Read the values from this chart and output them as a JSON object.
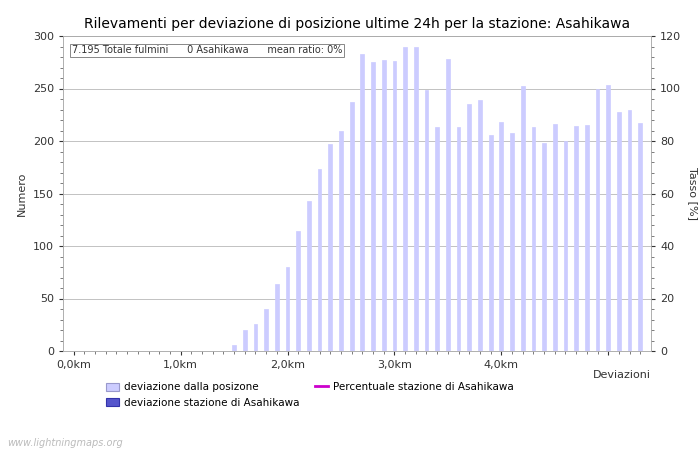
{
  "title": "Rilevamenti per deviazione di posizione ultime 24h per la stazione: Asahikawa",
  "subtitle": "7.195 Totale fulmini      0 Asahikawa      mean ratio: 0%",
  "xlabel": "Deviazioni",
  "ylabel_left": "Numero",
  "ylabel_right": "Tasso [%]",
  "watermark": "www.lightningmaps.org",
  "bar_values": [
    0,
    0,
    0,
    0,
    0,
    0,
    0,
    0,
    0,
    0,
    0,
    0,
    0,
    0,
    0,
    6,
    20,
    26,
    40,
    64,
    80,
    114,
    143,
    173,
    197,
    210,
    237,
    283,
    275,
    277,
    276,
    290,
    290,
    249,
    213,
    278,
    213,
    235,
    239,
    206,
    218,
    208,
    252,
    213,
    198,
    216,
    200,
    214,
    215,
    250,
    253,
    228,
    230,
    217
  ],
  "bar_color_light": "#ccccff",
  "bar_color_dark": "#5555cc",
  "line_color": "#cc00cc",
  "ylim_left": [
    0,
    300
  ],
  "ylim_right": [
    0,
    120
  ],
  "xtick_positions": [
    0,
    10,
    20,
    30,
    40,
    50
  ],
  "xtick_labels": [
    "0,0km",
    "1,0km",
    "2,0km",
    "3,0km",
    "4,0km",
    ""
  ],
  "yticks_left": [
    0,
    50,
    100,
    150,
    200,
    250,
    300
  ],
  "yticks_right": [
    0,
    20,
    40,
    60,
    80,
    100,
    120
  ],
  "grid_color": "#aaaaaa",
  "bg_color": "#ffffff",
  "title_fontsize": 10,
  "label_fontsize": 8,
  "tick_fontsize": 8,
  "legend_labels": [
    "deviazione dalla posizone",
    "deviazione stazione di Asahikawa",
    "Percentuale stazione di Asahikawa"
  ]
}
